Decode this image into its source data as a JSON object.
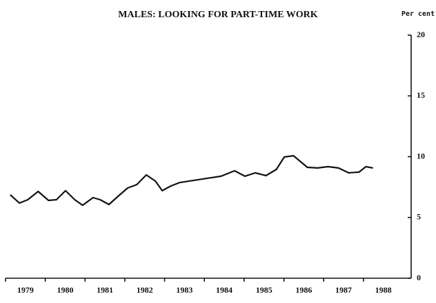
{
  "chart_data": {
    "type": "line",
    "title": "MALES: LOOKING FOR PART-TIME WORK",
    "y_axis_label": "Per cent",
    "categories": [
      "1979",
      "1980",
      "1981",
      "1982",
      "1983",
      "1984",
      "1985",
      "1986",
      "1987",
      "1988"
    ],
    "x": [
      1979.12,
      1979.35,
      1979.56,
      1979.82,
      1980.08,
      1980.28,
      1980.51,
      1980.74,
      1980.94,
      1981.2,
      1981.38,
      1981.6,
      1981.85,
      1982.07,
      1982.3,
      1982.54,
      1982.77,
      1982.94,
      1983.16,
      1983.38,
      1983.72,
      1984.07,
      1984.42,
      1984.76,
      1985.02,
      1985.28,
      1985.55,
      1985.81,
      1986.01,
      1986.24,
      1986.59,
      1986.85,
      1987.11,
      1987.37,
      1987.63,
      1987.89,
      1988.06,
      1988.24
    ],
    "series": [
      {
        "color": "#111111",
        "values": [
          6.86,
          6.18,
          6.46,
          7.14,
          6.4,
          6.46,
          7.2,
          6.46,
          6.0,
          6.63,
          6.46,
          6.06,
          6.8,
          7.42,
          7.7,
          8.5,
          7.99,
          7.2,
          7.59,
          7.87,
          8.04,
          8.22,
          8.39,
          8.84,
          8.39,
          8.67,
          8.44,
          8.95,
          9.97,
          10.08,
          9.12,
          9.07,
          9.18,
          9.07,
          8.67,
          8.73,
          9.18,
          9.07
        ]
      }
    ],
    "xlim": [
      1979,
      1989.2
    ],
    "ylim": [
      0,
      20
    ],
    "yticks": [
      0,
      5,
      10,
      15,
      20
    ]
  }
}
